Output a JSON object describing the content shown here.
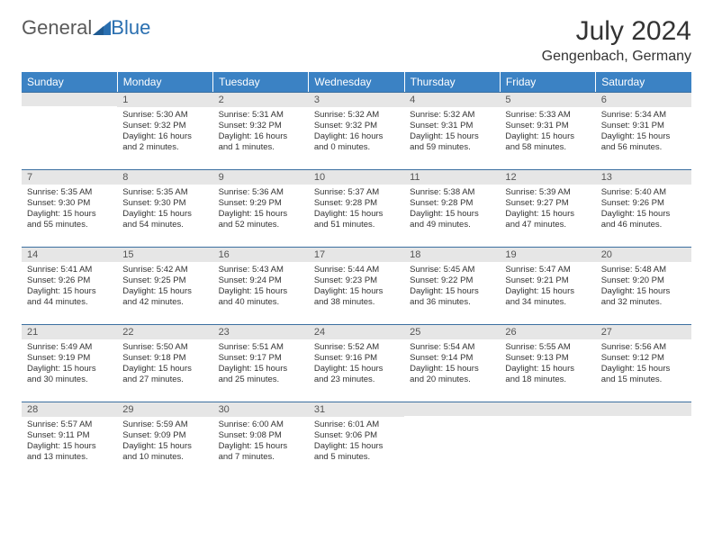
{
  "logo": {
    "text1": "General",
    "text2": "Blue"
  },
  "title": "July 2024",
  "location": "Gengenbach, Germany",
  "colors": {
    "header_bg": "#3b82c4",
    "header_fg": "#ffffff",
    "daynum_bg": "#e6e6e6",
    "daynum_fg": "#555555",
    "rule": "#3b6fa0",
    "text": "#333333",
    "logo_gray": "#5a5a5a",
    "logo_blue": "#2a6fb0"
  },
  "weekdays": [
    "Sunday",
    "Monday",
    "Tuesday",
    "Wednesday",
    "Thursday",
    "Friday",
    "Saturday"
  ],
  "weeks": [
    [
      null,
      {
        "n": "1",
        "sr": "Sunrise: 5:30 AM",
        "ss": "Sunset: 9:32 PM",
        "d1": "Daylight: 16 hours",
        "d2": "and 2 minutes."
      },
      {
        "n": "2",
        "sr": "Sunrise: 5:31 AM",
        "ss": "Sunset: 9:32 PM",
        "d1": "Daylight: 16 hours",
        "d2": "and 1 minutes."
      },
      {
        "n": "3",
        "sr": "Sunrise: 5:32 AM",
        "ss": "Sunset: 9:32 PM",
        "d1": "Daylight: 16 hours",
        "d2": "and 0 minutes."
      },
      {
        "n": "4",
        "sr": "Sunrise: 5:32 AM",
        "ss": "Sunset: 9:31 PM",
        "d1": "Daylight: 15 hours",
        "d2": "and 59 minutes."
      },
      {
        "n": "5",
        "sr": "Sunrise: 5:33 AM",
        "ss": "Sunset: 9:31 PM",
        "d1": "Daylight: 15 hours",
        "d2": "and 58 minutes."
      },
      {
        "n": "6",
        "sr": "Sunrise: 5:34 AM",
        "ss": "Sunset: 9:31 PM",
        "d1": "Daylight: 15 hours",
        "d2": "and 56 minutes."
      }
    ],
    [
      {
        "n": "7",
        "sr": "Sunrise: 5:35 AM",
        "ss": "Sunset: 9:30 PM",
        "d1": "Daylight: 15 hours",
        "d2": "and 55 minutes."
      },
      {
        "n": "8",
        "sr": "Sunrise: 5:35 AM",
        "ss": "Sunset: 9:30 PM",
        "d1": "Daylight: 15 hours",
        "d2": "and 54 minutes."
      },
      {
        "n": "9",
        "sr": "Sunrise: 5:36 AM",
        "ss": "Sunset: 9:29 PM",
        "d1": "Daylight: 15 hours",
        "d2": "and 52 minutes."
      },
      {
        "n": "10",
        "sr": "Sunrise: 5:37 AM",
        "ss": "Sunset: 9:28 PM",
        "d1": "Daylight: 15 hours",
        "d2": "and 51 minutes."
      },
      {
        "n": "11",
        "sr": "Sunrise: 5:38 AM",
        "ss": "Sunset: 9:28 PM",
        "d1": "Daylight: 15 hours",
        "d2": "and 49 minutes."
      },
      {
        "n": "12",
        "sr": "Sunrise: 5:39 AM",
        "ss": "Sunset: 9:27 PM",
        "d1": "Daylight: 15 hours",
        "d2": "and 47 minutes."
      },
      {
        "n": "13",
        "sr": "Sunrise: 5:40 AM",
        "ss": "Sunset: 9:26 PM",
        "d1": "Daylight: 15 hours",
        "d2": "and 46 minutes."
      }
    ],
    [
      {
        "n": "14",
        "sr": "Sunrise: 5:41 AM",
        "ss": "Sunset: 9:26 PM",
        "d1": "Daylight: 15 hours",
        "d2": "and 44 minutes."
      },
      {
        "n": "15",
        "sr": "Sunrise: 5:42 AM",
        "ss": "Sunset: 9:25 PM",
        "d1": "Daylight: 15 hours",
        "d2": "and 42 minutes."
      },
      {
        "n": "16",
        "sr": "Sunrise: 5:43 AM",
        "ss": "Sunset: 9:24 PM",
        "d1": "Daylight: 15 hours",
        "d2": "and 40 minutes."
      },
      {
        "n": "17",
        "sr": "Sunrise: 5:44 AM",
        "ss": "Sunset: 9:23 PM",
        "d1": "Daylight: 15 hours",
        "d2": "and 38 minutes."
      },
      {
        "n": "18",
        "sr": "Sunrise: 5:45 AM",
        "ss": "Sunset: 9:22 PM",
        "d1": "Daylight: 15 hours",
        "d2": "and 36 minutes."
      },
      {
        "n": "19",
        "sr": "Sunrise: 5:47 AM",
        "ss": "Sunset: 9:21 PM",
        "d1": "Daylight: 15 hours",
        "d2": "and 34 minutes."
      },
      {
        "n": "20",
        "sr": "Sunrise: 5:48 AM",
        "ss": "Sunset: 9:20 PM",
        "d1": "Daylight: 15 hours",
        "d2": "and 32 minutes."
      }
    ],
    [
      {
        "n": "21",
        "sr": "Sunrise: 5:49 AM",
        "ss": "Sunset: 9:19 PM",
        "d1": "Daylight: 15 hours",
        "d2": "and 30 minutes."
      },
      {
        "n": "22",
        "sr": "Sunrise: 5:50 AM",
        "ss": "Sunset: 9:18 PM",
        "d1": "Daylight: 15 hours",
        "d2": "and 27 minutes."
      },
      {
        "n": "23",
        "sr": "Sunrise: 5:51 AM",
        "ss": "Sunset: 9:17 PM",
        "d1": "Daylight: 15 hours",
        "d2": "and 25 minutes."
      },
      {
        "n": "24",
        "sr": "Sunrise: 5:52 AM",
        "ss": "Sunset: 9:16 PM",
        "d1": "Daylight: 15 hours",
        "d2": "and 23 minutes."
      },
      {
        "n": "25",
        "sr": "Sunrise: 5:54 AM",
        "ss": "Sunset: 9:14 PM",
        "d1": "Daylight: 15 hours",
        "d2": "and 20 minutes."
      },
      {
        "n": "26",
        "sr": "Sunrise: 5:55 AM",
        "ss": "Sunset: 9:13 PM",
        "d1": "Daylight: 15 hours",
        "d2": "and 18 minutes."
      },
      {
        "n": "27",
        "sr": "Sunrise: 5:56 AM",
        "ss": "Sunset: 9:12 PM",
        "d1": "Daylight: 15 hours",
        "d2": "and 15 minutes."
      }
    ],
    [
      {
        "n": "28",
        "sr": "Sunrise: 5:57 AM",
        "ss": "Sunset: 9:11 PM",
        "d1": "Daylight: 15 hours",
        "d2": "and 13 minutes."
      },
      {
        "n": "29",
        "sr": "Sunrise: 5:59 AM",
        "ss": "Sunset: 9:09 PM",
        "d1": "Daylight: 15 hours",
        "d2": "and 10 minutes."
      },
      {
        "n": "30",
        "sr": "Sunrise: 6:00 AM",
        "ss": "Sunset: 9:08 PM",
        "d1": "Daylight: 15 hours",
        "d2": "and 7 minutes."
      },
      {
        "n": "31",
        "sr": "Sunrise: 6:01 AM",
        "ss": "Sunset: 9:06 PM",
        "d1": "Daylight: 15 hours",
        "d2": "and 5 minutes."
      },
      null,
      null,
      null
    ]
  ]
}
